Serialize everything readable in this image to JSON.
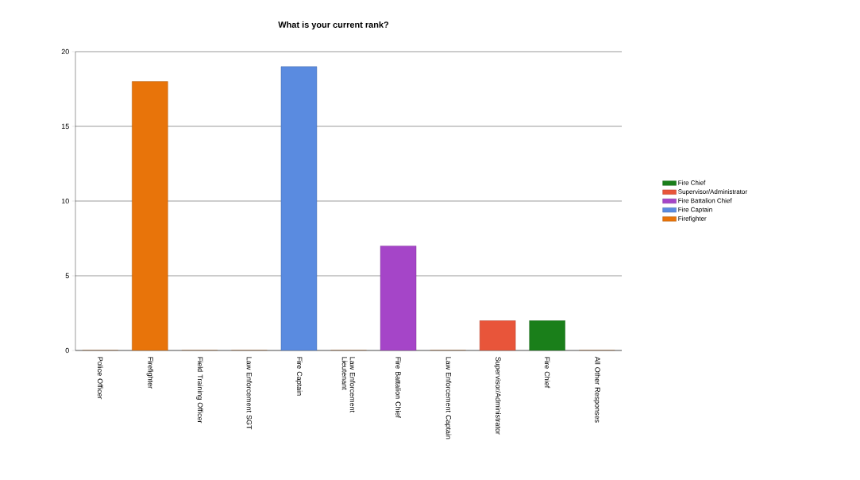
{
  "chart_data": {
    "type": "bar",
    "title": "What is your current rank?",
    "categories": [
      "Police Officer",
      "Firefighter",
      "Field Training Officer",
      "Law Enforcement SGT",
      "Fire Captain",
      "Law Enforcement Lieutenant",
      "Fire Battalion Chief",
      "Law Enforcement Captain",
      "Supervisor/Administrator",
      "Fire Chief",
      "All Other Responses"
    ],
    "series": [
      {
        "name": "Fire Chief",
        "color": "#1a7f1a",
        "values": [
          null,
          null,
          null,
          null,
          null,
          null,
          null,
          null,
          null,
          2,
          null
        ]
      },
      {
        "name": "Supervisor/Administrator",
        "color": "#e8553a",
        "values": [
          null,
          null,
          null,
          null,
          null,
          null,
          null,
          null,
          2,
          null,
          null
        ]
      },
      {
        "name": "Fire Battalion Chief",
        "color": "#a545c8",
        "values": [
          null,
          null,
          null,
          null,
          null,
          null,
          7,
          null,
          null,
          null,
          null
        ]
      },
      {
        "name": "Fire Captain",
        "color": "#5a8be0",
        "values": [
          null,
          null,
          null,
          null,
          19,
          null,
          null,
          null,
          null,
          null,
          null
        ]
      },
      {
        "name": "Firefighter",
        "color": "#e8740a",
        "values": [
          0,
          18,
          0,
          0,
          null,
          0,
          null,
          0,
          null,
          null,
          0
        ]
      }
    ],
    "ylim": [
      0,
      20
    ],
    "yticks": [
      0,
      5,
      10,
      15,
      20
    ],
    "grid": "y",
    "legend": "right"
  }
}
